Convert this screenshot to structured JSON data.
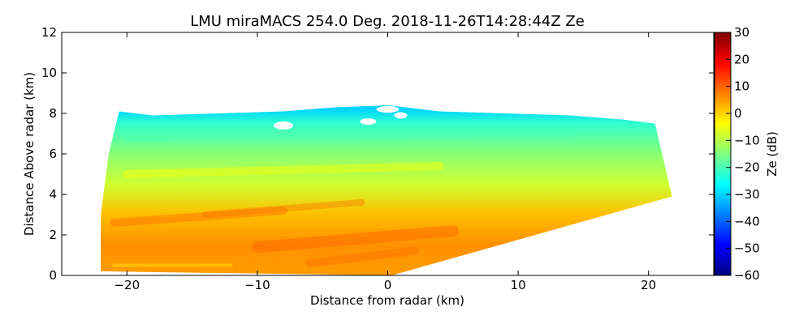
{
  "chart_data": {
    "type": "heatmap",
    "title": "LMU miraMACS 254.0 Deg. 2018-11-26T14:28:44Z  Ze",
    "xlabel": "Distance from radar (km)",
    "ylabel": "Distance Above radar  (km)",
    "xlim": [
      -25,
      25
    ],
    "ylim": [
      0,
      12
    ],
    "x_ticks": [
      "−20",
      "−10",
      "0",
      "10",
      "20"
    ],
    "y_ticks": [
      "0",
      "2",
      "4",
      "6",
      "8",
      "10",
      "12"
    ],
    "colorbar": {
      "label": "Ze (dB)",
      "range": [
        -60,
        30
      ],
      "ticks": [
        "−60",
        "−50",
        "−40",
        "−30",
        "−20",
        "−10",
        "0",
        "10",
        "20",
        "30"
      ],
      "colormap": "jet"
    },
    "scan": {
      "azimuth_deg": 254.0,
      "left_edge_km": -22,
      "right_edge_top": [
        21.8,
        3.9
      ],
      "right_edge_low": [
        0.3,
        0.0
      ],
      "echo_top_km": 8.2
    },
    "field_layers": [
      {
        "height_km": 0.3,
        "ze_db": 5
      },
      {
        "height_km": 1.5,
        "ze_db": 6
      },
      {
        "height_km": 3.0,
        "ze_db": 2
      },
      {
        "height_km": 4.5,
        "ze_db": -8
      },
      {
        "height_km": 6.0,
        "ze_db": -14
      },
      {
        "height_km": 7.5,
        "ze_db": -22
      },
      {
        "height_km": 8.2,
        "ze_db": -30
      }
    ],
    "grid": false,
    "legend": "none"
  },
  "colors": {
    "jet_stops": [
      "#00007f",
      "#0000ff",
      "#007fff",
      "#00ffff",
      "#7fff7f",
      "#ffff00",
      "#ff7f00",
      "#ff0000",
      "#7f0000"
    ],
    "axis": "#000000",
    "background": "#ffffff"
  }
}
